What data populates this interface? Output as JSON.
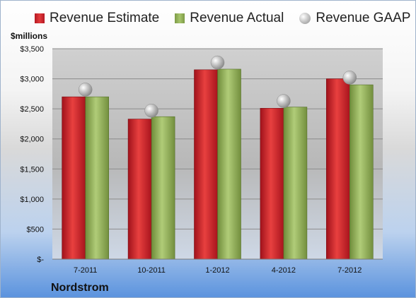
{
  "colors": {
    "estimate": "#c8202a",
    "actual": "#93b35a",
    "gaap": "#b5b5b5",
    "grid": "#8c8c8c"
  },
  "legend": {
    "estimate": "Revenue Estimate",
    "actual": "Revenue Actual",
    "gaap": "Revenue GAAP"
  },
  "unit_label": "$millions",
  "company": "Nordstrom",
  "chart_data": {
    "type": "bar",
    "categories": [
      "7-2011",
      "10-2011",
      "1-2012",
      "4-2012",
      "7-2012"
    ],
    "series": [
      {
        "name": "Revenue Estimate",
        "type": "bar",
        "values": [
          2700,
          2330,
          3150,
          2510,
          3000
        ]
      },
      {
        "name": "Revenue Actual",
        "type": "bar",
        "values": [
          2700,
          2370,
          3160,
          2530,
          2900
        ]
      },
      {
        "name": "Revenue GAAP",
        "type": "scatter",
        "values": [
          2820,
          2470,
          3270,
          2630,
          3020
        ]
      }
    ],
    "ylim": [
      0,
      3500
    ],
    "ytick_values": [
      0,
      500,
      1000,
      1500,
      2000,
      2500,
      3000,
      3500
    ],
    "ytick_labels": [
      "$-",
      "$500",
      "$1,000",
      "$1,500",
      "$2,000",
      "$2,500",
      "$3,000",
      "$3,500"
    ],
    "grid": true,
    "legend_position": "top"
  }
}
